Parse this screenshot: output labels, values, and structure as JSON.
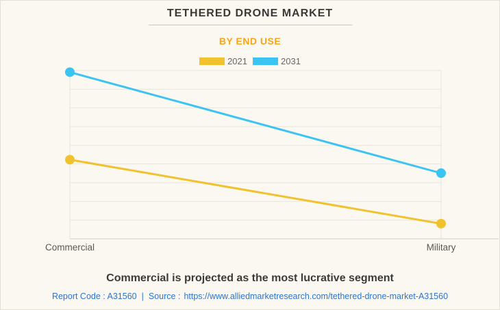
{
  "header": {
    "title": "TETHERED DRONE MARKET",
    "subtitle": "BY END USE"
  },
  "chart_data": {
    "type": "line",
    "categories": [
      "Commercial",
      "Military"
    ],
    "series": [
      {
        "name": "2021",
        "color": "#f0c22d",
        "values": [
          47,
          9
        ]
      },
      {
        "name": "2031",
        "color": "#3bc4f2",
        "values": [
          99,
          39
        ]
      }
    ],
    "title": "TETHERED DRONE MARKET",
    "subtitle": "BY END USE",
    "xlabel": "",
    "ylabel": "",
    "ylim": [
      0,
      100
    ],
    "y_axis_labels_visible": false,
    "grid": true,
    "grid_rows": 10,
    "legend_position": "top",
    "marker_radius": 7,
    "line_width": 3,
    "grid_color": "#e8e5de",
    "axis_color": "#cfccc3"
  },
  "footer": {
    "headline": "Commercial is projected as the most lucrative segment",
    "report_code": "Report Code : A31560",
    "separator": "|",
    "source_label": "Source :",
    "source_url": "https://www.alliedmarketresearch.com/tethered-drone-market-A31560"
  },
  "colors": {
    "background": "#faf8f1",
    "accent_orange": "#f9a51a",
    "link_blue": "#2b74cf",
    "series_2021": "#f0c22d",
    "series_2031": "#3bc4f2"
  }
}
